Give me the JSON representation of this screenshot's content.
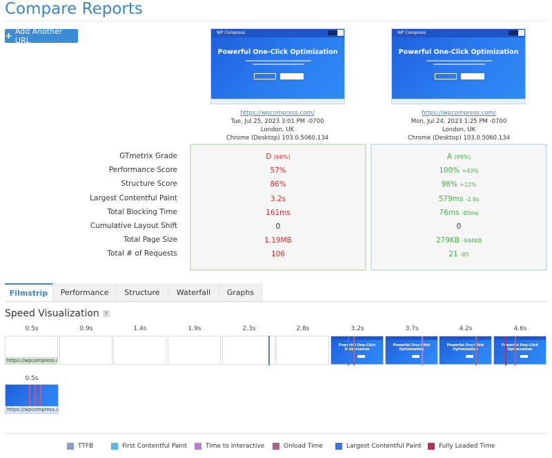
{
  "page": {
    "title": "Compare Reports"
  },
  "toolbar": {
    "add_label": "Add Another URL"
  },
  "screenshot_text": {
    "brand": "WP Compress",
    "headline": "Powerful One-Click Optimization"
  },
  "reports": [
    {
      "url": "https://wpcompress.com/",
      "date": "Tue, Jul 25, 2023 3:01 PM -0700",
      "location": "London, UK",
      "browser": "Chrome (Desktop) 103.0.5060.134"
    },
    {
      "url": "https://wpcompress.com/",
      "date": "Mon, Jul 24, 2023 1:25 PM -0700",
      "location": "London, UK",
      "browser": "Chrome (Desktop) 103.0.5060.134"
    }
  ],
  "metrics": {
    "labels": [
      "GTmetrix Grade",
      "Performance Score",
      "Structure Score",
      "Largest Contentful Paint",
      "Total Blocking Time",
      "Cumulative Layout Shift",
      "Total Page Size",
      "Total # of Requests"
    ],
    "report_a": [
      {
        "value": "D",
        "extra": "(66%)"
      },
      {
        "value": "57%"
      },
      {
        "value": "86%"
      },
      {
        "value": "3.2s"
      },
      {
        "value": "161ms"
      },
      {
        "value": "0"
      },
      {
        "value": "1.19MB"
      },
      {
        "value": "106"
      }
    ],
    "report_b": [
      {
        "value": "A",
        "extra": "(99%)"
      },
      {
        "value": "100%",
        "delta": "+43%"
      },
      {
        "value": "98%",
        "delta": "+12%"
      },
      {
        "value": "579ms",
        "delta": "-2.6s"
      },
      {
        "value": "76ms",
        "delta": "-85ms"
      },
      {
        "value": "0"
      },
      {
        "value": "279KB",
        "delta": "-944KB"
      },
      {
        "value": "21",
        "delta": "-85"
      }
    ]
  },
  "tabs": [
    "Filmstrip",
    "Performance",
    "Structure",
    "Waterfall",
    "Graphs"
  ],
  "speed": {
    "title": "Speed Visualization",
    "help": "?",
    "row1_times": [
      "0.5s",
      "0.9s",
      "1.4s",
      "1.9s",
      "2.3s",
      "2.8s",
      "3.2s",
      "3.7s",
      "4.2s",
      "4.6s"
    ],
    "row1_url": "https://wpcompress.com...",
    "row2_time": "0.5s",
    "row2_url": "https://wpcompress.com/"
  },
  "legend": [
    "TTFB",
    "First Contentful Paint",
    "Time to Interactive",
    "Onload Time",
    "Largest Contentful Paint",
    "Fully Loaded Time"
  ],
  "colors": {
    "accent": "#3a86c8",
    "bad": "#d52a2a",
    "good": "#3cb63c",
    "ttfb": "#8c9ec7",
    "fcp": "#5ab8e6",
    "tti": "#b77ed6",
    "onload": "#a7638a",
    "lcp": "#3f74d8",
    "fully_loaded": "#b3305e"
  }
}
